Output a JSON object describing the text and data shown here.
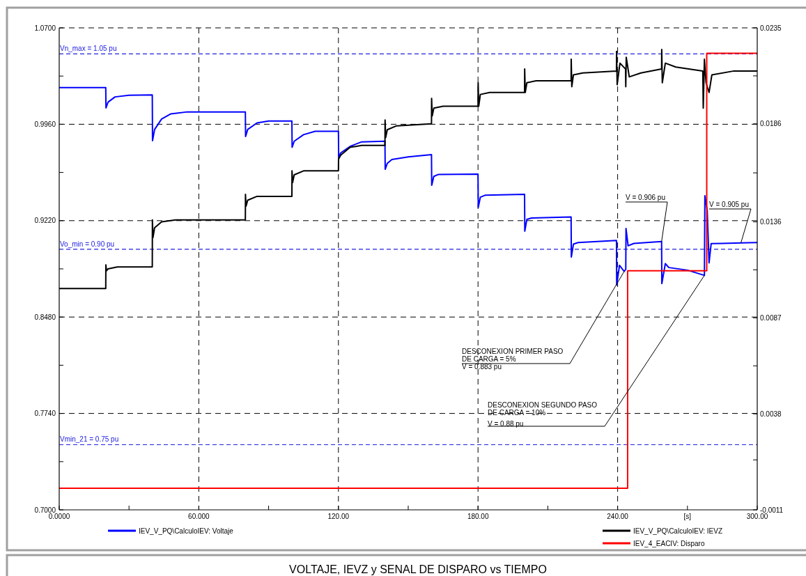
{
  "chart_data": {
    "type": "line",
    "title": "VOLTAJE, IEVZ y SENAL DE DISPARO vs TIEMPO",
    "xlabel": "[s]",
    "legend": "bottom",
    "grid": true,
    "xlim": [
      0,
      300
    ],
    "xticks": [
      {
        "value": 0,
        "label": "0.0000"
      },
      {
        "value": 30,
        "label": null
      },
      {
        "value": 60,
        "label": "60.000"
      },
      {
        "value": 90,
        "label": null
      },
      {
        "value": 120,
        "label": "120.00"
      },
      {
        "value": 150,
        "label": null
      },
      {
        "value": 180,
        "label": "180.00"
      },
      {
        "value": 210,
        "label": null
      },
      {
        "value": 240,
        "label": "240.00"
      },
      {
        "value": 270,
        "label": null
      },
      {
        "value": 300,
        "label": "300.00"
      }
    ],
    "ylim": [
      0.7,
      1.07
    ],
    "yticks": [
      {
        "value": 0.7,
        "label": "0.7000"
      },
      {
        "value": 0.737,
        "label": null
      },
      {
        "value": 0.774,
        "label": "0.7740"
      },
      {
        "value": 0.811,
        "label": null
      },
      {
        "value": 0.848,
        "label": "0.8480"
      },
      {
        "value": 0.885,
        "label": null
      },
      {
        "value": 0.922,
        "label": "0.9220"
      },
      {
        "value": 0.959,
        "label": null
      },
      {
        "value": 0.996,
        "label": "0.9960"
      },
      {
        "value": 1.033,
        "label": null
      },
      {
        "value": 1.07,
        "label": "1.0700"
      }
    ],
    "y2lim": [
      -0.0011,
      0.0235
    ],
    "y2ticks": [
      -0.0011,
      {
        "value": 0.00145,
        "label": null
      },
      0.0038,
      {
        "value": 0.00625,
        "label": null
      },
      0.0087,
      {
        "value": 0.01115,
        "label": null
      },
      0.0136,
      {
        "value": 0.0161,
        "label": null
      },
      0.0186,
      {
        "value": 0.02105,
        "label": null
      },
      0.0235
    ],
    "ref_lines": [
      {
        "axis": "y",
        "value": 1.05,
        "label": "Vn_max = 1.05 pu",
        "color": "#2020e0",
        "line_style": "dashed"
      },
      {
        "axis": "y",
        "value": 0.9,
        "label": "Vo_min = 0.90 pu",
        "color": "#2020e0",
        "line_style": "dashed"
      },
      {
        "axis": "y",
        "value": 0.75,
        "label": "Vmin_21 = 0.75 pu",
        "color": "#2020e0",
        "line_style": "dashed"
      }
    ],
    "annotations": [
      {
        "text": "DESCONEXION PRIMER PASO\nDE CARGA = 5%\nV = 0.883 pu",
        "x": 242.8,
        "y": 0.883
      },
      {
        "text": "DESCONEXION SEGUNDO PASO\nDE CARGA = 10%\nV = 0.88 pu",
        "x": 277.3,
        "y": 0.88
      },
      {
        "text": "V = 0.906 pu",
        "x": 258.9,
        "y": 0.906
      },
      {
        "text": "V = 0.905 pu",
        "x": 293,
        "y": 0.905
      }
    ],
    "line_style": "solid",
    "series": [
      {
        "name": "IEV_V_PQ\\CalculoIEV: Voltaje",
        "color": "#0000ff",
        "x": [
          0,
          20,
          20.1,
          21,
          24,
          30,
          40,
          40.1,
          41,
          44,
          48,
          55,
          80,
          80.1,
          81,
          85,
          90,
          100,
          100.1,
          101,
          105,
          110,
          120,
          120.1,
          121,
          125,
          130,
          140,
          140.1,
          141,
          143,
          150,
          160,
          160.1,
          161,
          163,
          180,
          180.1,
          181,
          183,
          200,
          200.1,
          201,
          203,
          220,
          220.1,
          221,
          223,
          239.5,
          239.6,
          240.8,
          242.8,
          243.5,
          243.6,
          244.5,
          247,
          258.9,
          259,
          260.5,
          262,
          270,
          277.3,
          277.5,
          278.5,
          279.3,
          280.2,
          285,
          296,
          300
        ],
        "values": [
          1.0242,
          1.0242,
          1.0085,
          1.013,
          1.017,
          1.0183,
          1.0185,
          0.9834,
          0.992,
          1.0,
          1.004,
          1.0055,
          1.0055,
          0.9866,
          0.992,
          0.997,
          0.9985,
          0.9985,
          0.9783,
          0.983,
          0.988,
          0.9906,
          0.9906,
          0.9708,
          0.974,
          0.979,
          0.9825,
          0.983,
          0.9614,
          0.966,
          0.969,
          0.971,
          0.9727,
          0.9491,
          0.956,
          0.9575,
          0.9577,
          0.9321,
          0.94,
          0.9415,
          0.9422,
          0.9139,
          0.923,
          0.924,
          0.9248,
          0.8941,
          0.904,
          0.9052,
          0.9068,
          0.8727,
          0.8877,
          0.883,
          0.8846,
          0.916,
          0.9027,
          0.9045,
          0.906,
          0.8737,
          0.889,
          0.886,
          0.884,
          0.88,
          0.9411,
          0.93,
          0.8896,
          0.9044,
          0.9045,
          0.905,
          0.9052
        ]
      },
      {
        "name": "IEV_V_PQ\\CalculoIEV: IEVZ",
        "color": "#000000",
        "axis": "y2",
        "x": [
          0,
          20,
          20.05,
          20.3,
          21,
          25,
          40,
          40.05,
          40.3,
          41,
          44,
          50,
          80,
          80.05,
          80.3,
          81,
          85,
          100,
          100.05,
          100.3,
          101,
          105,
          120,
          120.05,
          121,
          125,
          130,
          140,
          140.05,
          140.3,
          141,
          145,
          160,
          160.05,
          160.3,
          161,
          165,
          180,
          180.05,
          180.3,
          181,
          185,
          200,
          200.05,
          200.3,
          201,
          205,
          220,
          220.05,
          220.3,
          221,
          225,
          239.5,
          239.55,
          239.8,
          241,
          243.4,
          243.5,
          243.7,
          245,
          250,
          258.9,
          258.95,
          259.2,
          260.5,
          265,
          276.6,
          276.8,
          277.3,
          278,
          279.3,
          280.5,
          290,
          300
        ],
        "values": [
          0.0102,
          0.0102,
          0.0114,
          0.0111,
          0.0112,
          0.0113,
          0.0113,
          0.0137,
          0.0128,
          0.0133,
          0.0136,
          0.0137,
          0.0137,
          0.015,
          0.0144,
          0.0147,
          0.0149,
          0.0149,
          0.0162,
          0.0156,
          0.016,
          0.0162,
          0.0162,
          0.0168,
          0.017,
          0.0174,
          0.0175,
          0.0175,
          0.0188,
          0.0179,
          0.0183,
          0.0185,
          0.0186,
          0.0199,
          0.019,
          0.0194,
          0.0195,
          0.0195,
          0.0207,
          0.0195,
          0.0201,
          0.0202,
          0.0202,
          0.0214,
          0.0202,
          0.0207,
          0.0208,
          0.0208,
          0.0219,
          0.0205,
          0.0211,
          0.0212,
          0.0213,
          0.0223,
          0.0206,
          0.0217,
          0.0214,
          0.0205,
          0.022,
          0.021,
          0.0212,
          0.0214,
          0.0224,
          0.0207,
          0.0217,
          0.0215,
          0.0213,
          0.0194,
          0.0219,
          0.0207,
          0.0202,
          0.0211,
          0.0213,
          0.0213
        ]
      },
      {
        "name": "IEV_4_EACIV: Disparo",
        "color": "#ff0000",
        "axis": "y2",
        "x": [
          0,
          244.3,
          244.3,
          278.3,
          278.3,
          300
        ],
        "values": [
          0,
          0,
          0.0111,
          0.0111,
          0.0222,
          0.0222
        ]
      }
    ]
  }
}
